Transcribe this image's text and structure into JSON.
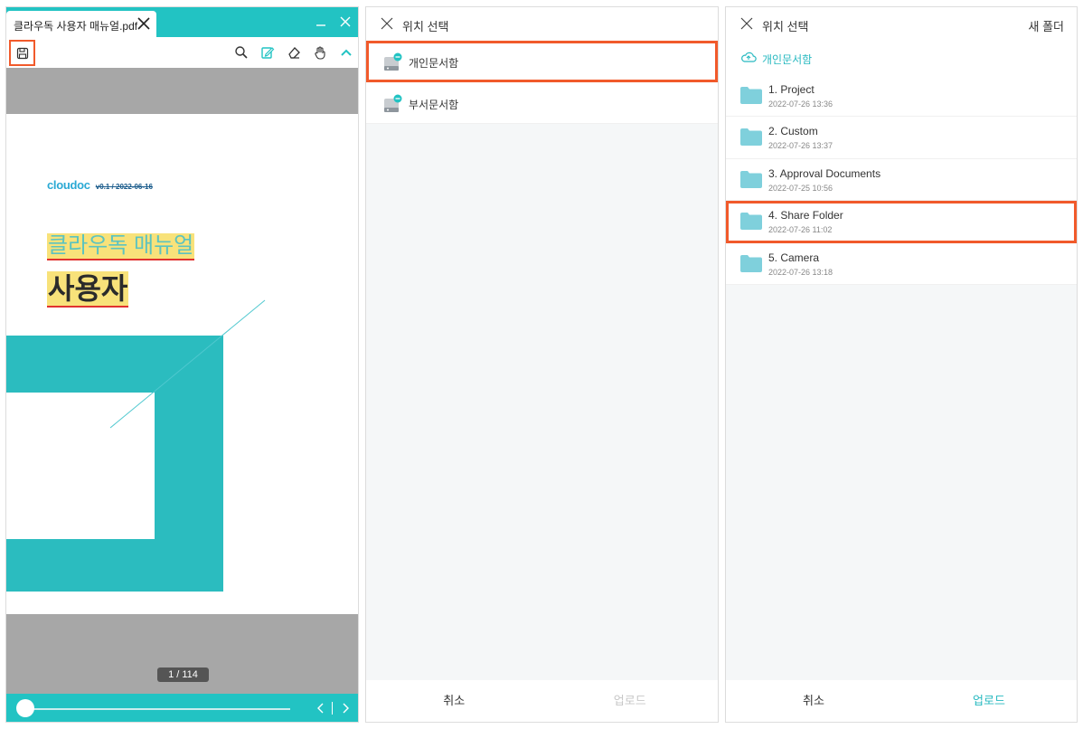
{
  "viewer": {
    "tab_title": "클라우독 사용자 매뉴얼.pdf",
    "document": {
      "logo_text": "cloudoc",
      "version": "v0.1 / 2022-06-16",
      "title": "클라우독 매뉴얼",
      "subtitle": "사용자"
    },
    "page_indicator": "1 / 114",
    "slider_position": 0,
    "colors": {
      "accent": "#22c3c3",
      "highlight": "#f15a2b",
      "marker": "#f8e27a",
      "shape": "#2bbcbf"
    },
    "toolbar_icons": [
      "save-icon",
      "search-icon",
      "edit-icon",
      "eraser-icon",
      "hand-icon",
      "chevron-up-icon"
    ]
  },
  "picker_root": {
    "title": "위치 선택",
    "drives": [
      {
        "label": "개인문서함"
      },
      {
        "label": "부서문서함"
      }
    ],
    "cancel_label": "취소",
    "upload_label": "업로드"
  },
  "picker_folder": {
    "title": "위치 선택",
    "new_folder_label": "새 폴더",
    "breadcrumb": "개인문서함",
    "folders": [
      {
        "name": "1. Project",
        "date": "2022-07-26 13:36"
      },
      {
        "name": "2. Custom",
        "date": "2022-07-26 13:37"
      },
      {
        "name": "3. Approval Documents",
        "date": "2022-07-25 10:56"
      },
      {
        "name": "4. Share Folder",
        "date": "2022-07-26 11:02"
      },
      {
        "name": "5. Camera",
        "date": "2022-07-26 13:18"
      }
    ],
    "cancel_label": "취소",
    "upload_label": "업로드"
  }
}
